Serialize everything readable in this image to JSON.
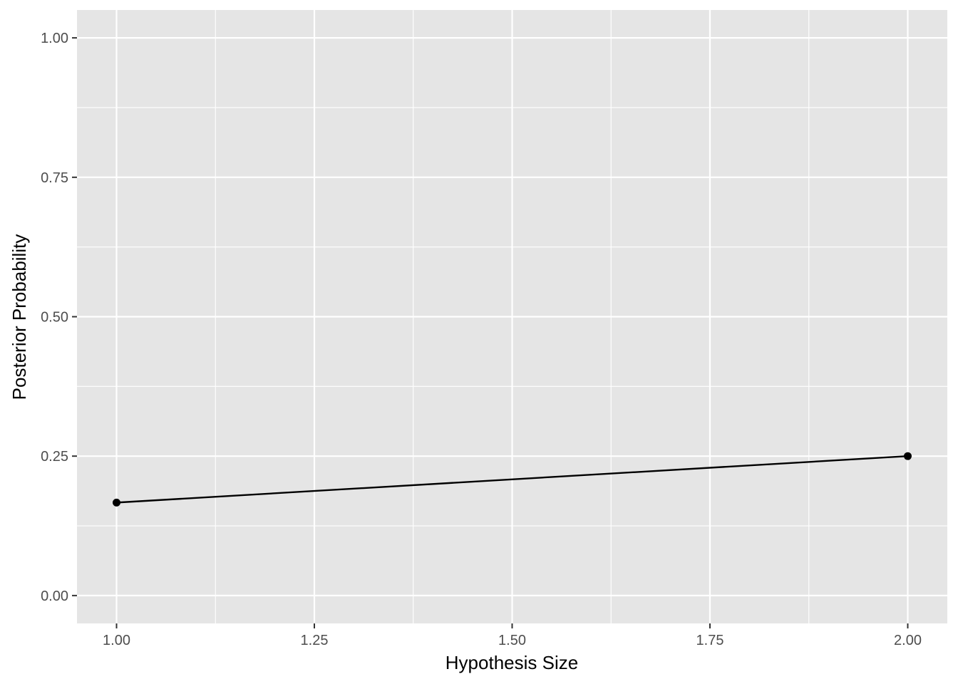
{
  "chart_data": {
    "type": "line",
    "title": "",
    "xlabel": "Hypothesis Size",
    "ylabel": "Posterior Probability",
    "x": [
      1,
      2
    ],
    "series": [
      {
        "values": [
          0.1667,
          0.25
        ],
        "color": "#000000",
        "markers": true
      }
    ],
    "xlim": [
      0.95,
      2.05
    ],
    "ylim": [
      -0.05,
      1.05
    ],
    "xticks": [
      1.0,
      1.25,
      1.5,
      1.75,
      2.0
    ],
    "xtick_labels": [
      "1.00",
      "1.25",
      "1.50",
      "1.75",
      "2.00"
    ],
    "yticks": [
      0.0,
      0.25,
      0.5,
      0.75,
      1.0
    ],
    "ytick_labels": [
      "0.00",
      "0.25",
      "0.50",
      "0.75",
      "1.00"
    ],
    "grid": true,
    "legend": "none",
    "colors": {
      "panel_background": "#e5e5e5",
      "grid_line": "#ffffff",
      "tick_mark": "#333333",
      "tick_text": "#4d4d4d"
    }
  }
}
